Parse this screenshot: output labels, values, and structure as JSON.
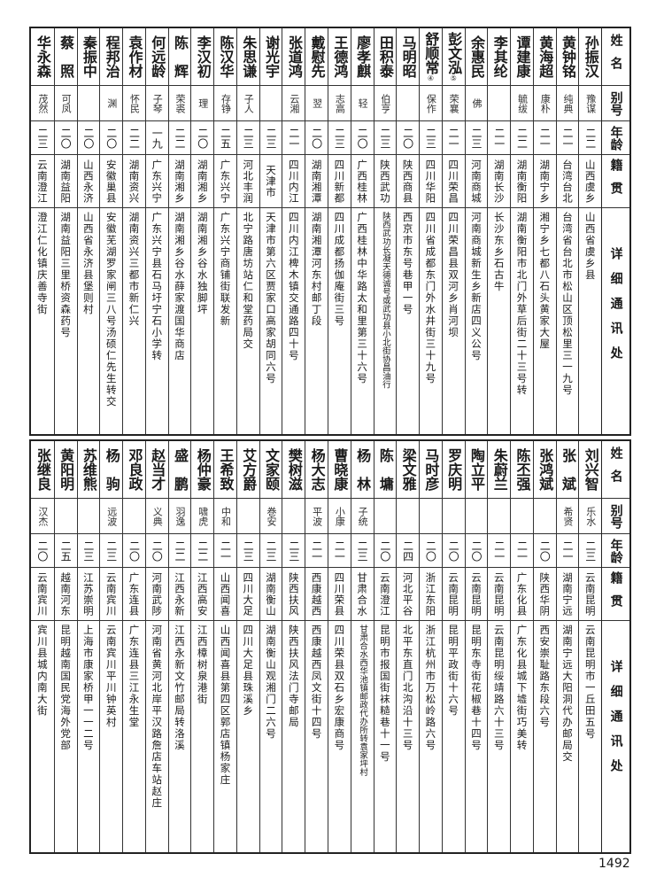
{
  "headers": {
    "name": "姓名",
    "alias": "别号",
    "age": "年龄",
    "origin": "籍贯",
    "address": "详细通讯处"
  },
  "tables": [
    {
      "rows": [
        {
          "name": "孙振汉",
          "alias": "豫谋",
          "age": "二二",
          "origin": "山西虞乡",
          "address": "山西省虞乡县"
        },
        {
          "name": "黄钟铭",
          "alias": "纯典",
          "age": "二一",
          "origin": "台湾台北",
          "address": "台湾省台北市松山区顶松里三一九号"
        },
        {
          "name": "黄海超",
          "alias": "康朴",
          "age": "二一",
          "origin": "湖南宁乡",
          "address": "湘宁乡七都八石头黄家大屋"
        },
        {
          "name": "谭建康",
          "alias": "毓绂",
          "age": "二二",
          "origin": "湖南衡阳",
          "address": "湖南衡阳市北门外草后街二十三号转"
        },
        {
          "name": "李其纶",
          "alias": "",
          "age": "二一",
          "origin": "湖南长沙",
          "address": "长沙东乡石古牛"
        },
        {
          "name": "余惠民",
          "alias": "佛",
          "age": "二三",
          "origin": "河南商城",
          "address": "河南商城新生乡新店四义公号"
        },
        {
          "name": "彭文泓",
          "note": "⑤",
          "alias": "荣襄",
          "age": "二一",
          "origin": "四川荣昌",
          "address": "四川荣昌县双河乡肖河坝"
        },
        {
          "name": "舒顺常",
          "note": "④",
          "alias": "保作",
          "age": "二三",
          "origin": "四川华阳",
          "address": "四川省成都东门外水井街三十九号"
        },
        {
          "name": "马明昭",
          "alias": "",
          "age": "二〇",
          "origin": "陕西商县",
          "address": "西京市东号巷甲一号"
        },
        {
          "name": "田积泰",
          "alias": "伯亨",
          "age": "二三",
          "origin": "陕西武功",
          "address": "陕西武功长凝天德诚号或武功县小北街协昌油行"
        },
        {
          "name": "廖孝麒",
          "alias": "轻",
          "age": "二〇",
          "origin": "广西桂林",
          "address": "广西桂林中华路太和里第三十六号"
        },
        {
          "name": "王德鸿",
          "alias": "志高",
          "age": "二三",
          "origin": "四川新都",
          "address": "四川成都扬伽庵街三号"
        },
        {
          "name": "戴慰先",
          "alias": "翌",
          "age": "二〇",
          "origin": "湖南湘潭",
          "address": "湖南湘潭河东村邮丁段"
        },
        {
          "name": "张道鸿",
          "alias": "云湘",
          "age": "二一",
          "origin": "四川内江",
          "address": "四川内江椑木镇交通路四十号"
        },
        {
          "name": "谢光宇",
          "alias": "",
          "age": "二三",
          "origin": "天津市",
          "address": "天津市第六区贾家口高家胡同六号"
        },
        {
          "name": "朱思谦",
          "alias": "子人",
          "age": "二三",
          "origin": "河北丰润",
          "address": "北宁路唐坊站仁和堂药局交"
        },
        {
          "name": "陈汉华",
          "alias": "存铮",
          "age": "二五",
          "origin": "广东兴宁",
          "address": "广东兴宁商铺街联发新"
        },
        {
          "name": "李汉初",
          "alias": "理",
          "age": "二〇",
          "origin": "湖南湘乡",
          "address": "湖南湘乡谷水独脚坪"
        },
        {
          "name": "陈　辉",
          "alias": "荣裘",
          "age": "二二",
          "origin": "湖南湘乡",
          "address": "湖南湘乡谷水薛家渡国华商店"
        },
        {
          "name": "何远龄",
          "alias": "子琴",
          "age": "一九",
          "origin": "广东兴宁",
          "address": "广东兴宁县石马圩宁石小学转"
        },
        {
          "name": "袁作材",
          "alias": "怀民",
          "age": "二二",
          "origin": "湖南资兴",
          "address": "湖南资兴三都市新仁兴"
        },
        {
          "name": "程邦治",
          "alias": "渊",
          "age": "二〇",
          "origin": "安徽巢县",
          "address": "安徽芜湖罗家闸三八号汤硕仁先生转交"
        },
        {
          "name": "秦振中",
          "alias": "",
          "age": "二〇",
          "origin": "山西永济",
          "address": "山西省永济县堡则村"
        },
        {
          "name": "蔡　照",
          "alias": "可凤",
          "age": "二〇",
          "origin": "湖南益阳",
          "address": "湖南益阳三里桥资森药号"
        },
        {
          "name": "华永森",
          "alias": "茂然",
          "age": "二三",
          "origin": "云南澄江",
          "address": "澄江仁化镇庆善寺街"
        }
      ]
    },
    {
      "rows": [
        {
          "name": "刘兴智",
          "alias": "乐水",
          "age": "二三",
          "origin": "云南昆明",
          "address": "云南昆明市一丘田五号"
        },
        {
          "name": "张　斌",
          "alias": "希贤",
          "age": "二一",
          "origin": "湖南宁远",
          "address": "湖南宁远大阳洞代办邮局交"
        },
        {
          "name": "张鸿斌",
          "alias": "",
          "age": "二〇",
          "origin": "陕西华阴",
          "address": "西安崇耻路东段六号"
        },
        {
          "name": "陈丕强",
          "alias": "",
          "age": "二一",
          "origin": "广东化县",
          "address": "广东化县城下墟街巧美转"
        },
        {
          "name": "朱蔚兰",
          "alias": "",
          "age": "二一",
          "origin": "云南昆明",
          "address": "云南昆明绥靖路六十三号"
        },
        {
          "name": "陶立平",
          "alias": "",
          "age": "二〇",
          "origin": "云南昆明",
          "address": "昆明东寺街花椒巷十四号"
        },
        {
          "name": "罗庆明",
          "alias": "",
          "age": "二〇",
          "origin": "云南昆明",
          "address": "昆明平政街十六号"
        },
        {
          "name": "马时彦",
          "alias": "",
          "age": "二〇",
          "origin": "浙江东阳",
          "address": "浙江杭州市万松岭路六号"
        },
        {
          "name": "梁文雅",
          "alias": "",
          "age": "二四",
          "origin": "河北平谷",
          "address": "北平东直门北沟沿十三号"
        },
        {
          "name": "陈　墉",
          "alias": "",
          "age": "二〇",
          "origin": "云南澄江",
          "address": "昆明市报国街袜糙巷十一号"
        },
        {
          "name": "杨　林",
          "alias": "子统",
          "age": "二三",
          "origin": "甘肃合水",
          "address": "甘肃合水西华池镇邮政代办所转袁家坪村"
        },
        {
          "name": "曹晓康",
          "alias": "小康",
          "age": "二一",
          "origin": "四川荣县",
          "address": "四川荣县双石乡宏康商号"
        },
        {
          "name": "杨大志",
          "alias": "平波",
          "age": "二一",
          "origin": "西康越西",
          "address": "西康越西凤文街十四号"
        },
        {
          "name": "樊树滋",
          "alias": "",
          "age": "二三",
          "origin": "陕西扶风",
          "address": "陕西扶风法门寺邮局"
        },
        {
          "name": "文家颐",
          "alias": "巻安",
          "age": "二三",
          "origin": "湖南衡山",
          "address": "湖南衡山观湘门二六号"
        },
        {
          "name": "艾方爵",
          "alias": "",
          "age": "二三",
          "origin": "四川大足",
          "address": "四川大足县珠溪乡"
        },
        {
          "name": "王希致",
          "alias": "中和",
          "age": "二一",
          "origin": "山西闻喜",
          "address": "山西闻喜县第四区郭店镇杨家庄"
        },
        {
          "name": "杨仲豪",
          "alias": "啸虎",
          "age": "二二",
          "origin": "江西高安",
          "address": "江西樟树泉港街"
        },
        {
          "name": "盛　鹏",
          "alias": "羽逸",
          "age": "二二",
          "origin": "江西永新",
          "address": "江西永新文竹邮局转洛溪"
        },
        {
          "name": "赵当才",
          "alias": "义典",
          "age": "二〇",
          "origin": "河南武陟",
          "address": "河南省黄河北岸平汉路詹店车站赵庄"
        },
        {
          "name": "邓良政",
          "alias": "",
          "age": "二〇",
          "origin": "广东连县",
          "address": "广东连县三江永生堂"
        },
        {
          "name": "杨　驹",
          "alias": "远波",
          "age": "二三",
          "origin": "云南宾川",
          "address": "云南宾川平川钟英村"
        },
        {
          "name": "苏维熊",
          "alias": "",
          "age": "二三",
          "origin": "江苏崇明",
          "address": "上海市康家桥甲一一二号"
        },
        {
          "name": "黄阳明",
          "alias": "",
          "age": "二五",
          "origin": "越南河东",
          "address": "昆明越南国民党海外党部"
        },
        {
          "name": "张继良",
          "alias": "汉杰",
          "age": "二〇",
          "origin": "云南宾川",
          "address": "宾川县城内南大街"
        }
      ]
    }
  ],
  "page_number": "1492"
}
